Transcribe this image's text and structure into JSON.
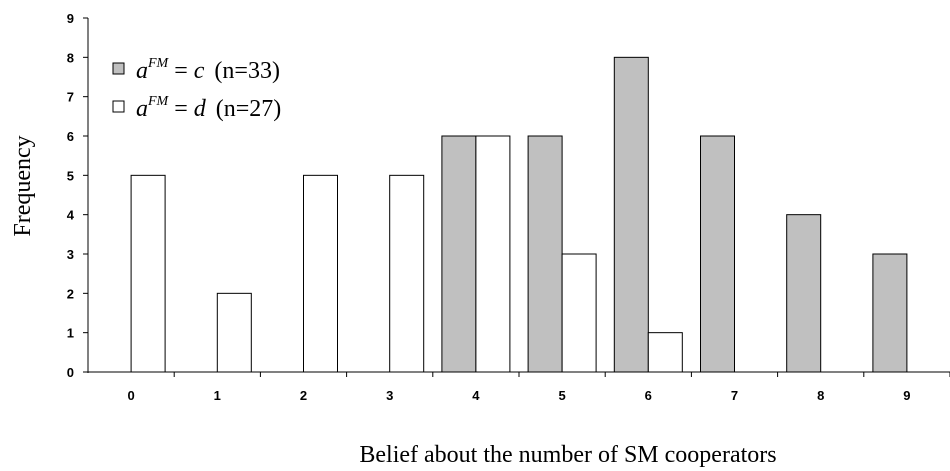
{
  "chart_data": {
    "type": "bar",
    "categories": [
      "0",
      "1",
      "2",
      "3",
      "4",
      "5",
      "6",
      "7",
      "8",
      "9"
    ],
    "series": [
      {
        "name": "a^{FM} = c (n=33)",
        "color": "#c0c0c0",
        "values": [
          0,
          0,
          0,
          0,
          6,
          6,
          8,
          6,
          4,
          3
        ]
      },
      {
        "name": "a^{FM} = d (n=27)",
        "color": "#ffffff",
        "values": [
          5,
          2,
          5,
          5,
          6,
          3,
          1,
          0,
          0,
          0
        ]
      }
    ],
    "xlabel": "Belief about the number of SM cooperators",
    "ylabel": "Frequency",
    "ylim": [
      0,
      9
    ],
    "yticks": [
      "0",
      "1",
      "2",
      "3",
      "4",
      "5",
      "6",
      "7",
      "8",
      "9"
    ],
    "grid": false,
    "legend_position": "top-left"
  },
  "legend": {
    "c_prefix": "a",
    "c_sup": "FM",
    "c_eq": " = ",
    "c_var": "c",
    "c_n": "(n=33)",
    "d_prefix": "a",
    "d_sup": "FM",
    "d_eq": " = ",
    "d_var": "d",
    "d_n": "(n=27)"
  }
}
